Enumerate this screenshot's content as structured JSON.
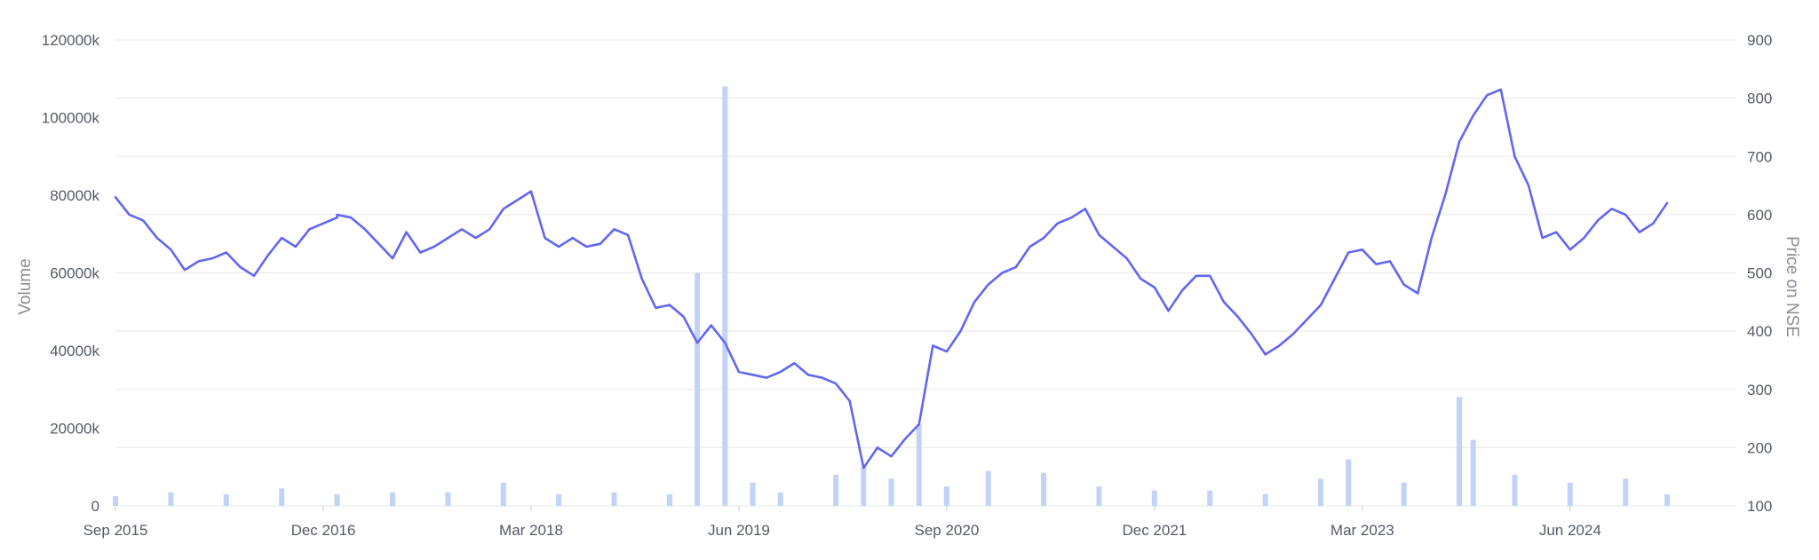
{
  "chart_data": {
    "type": "line",
    "title": "",
    "xlabel": "",
    "ylabel_left": "Volume",
    "ylabel_right": "Price on NSE",
    "x_ticks": [
      "Sep 2015",
      "Dec 2016",
      "Mar 2018",
      "Jun 2019",
      "Sep 2020",
      "Dec 2021",
      "Mar 2023",
      "Jun 2024"
    ],
    "y_left_ticks": [
      "0",
      "20000k",
      "40000k",
      "60000k",
      "80000k",
      "100000k",
      "120000k"
    ],
    "y_right_ticks": [
      "100",
      "200",
      "300",
      "400",
      "500",
      "600",
      "700",
      "800",
      "900"
    ],
    "ylim_left": [
      0,
      120000
    ],
    "ylim_right": [
      100,
      900
    ],
    "xlim": [
      "2015-09",
      "2025-06"
    ],
    "grid": true,
    "colors": {
      "price": "#6366f1",
      "volume": "#c3d3f7",
      "grid": "#e6e7ea"
    },
    "series": [
      {
        "name": "Price on NSE",
        "type": "line",
        "axis": "right",
        "points": [
          [
            "2015-09",
            630
          ],
          [
            "2015-10",
            600
          ],
          [
            "2015-11",
            590
          ],
          [
            "2015-12",
            560
          ],
          [
            "2016-01",
            540
          ],
          [
            "2016-02",
            505
          ],
          [
            "2016-03",
            520
          ],
          [
            "2016-04",
            525
          ],
          [
            "2016-05",
            535
          ],
          [
            "2016-06",
            510
          ],
          [
            "2016-07",
            495
          ],
          [
            "2016-08",
            530
          ],
          [
            "2016-09",
            560
          ],
          [
            "2016-10",
            545
          ],
          [
            "2016-11",
            575
          ],
          [
            "2016-12",
            585
          ],
          [
            "2016-13",
            595
          ],
          [
            "2017-01",
            600
          ],
          [
            "2017-02",
            595
          ],
          [
            "2017-03",
            575
          ],
          [
            "2017-04",
            550
          ],
          [
            "2017-05",
            525
          ],
          [
            "2017-06",
            570
          ],
          [
            "2017-07",
            535
          ],
          [
            "2017-08",
            545
          ],
          [
            "2017-09",
            560
          ],
          [
            "2017-10",
            575
          ],
          [
            "2017-11",
            560
          ],
          [
            "2017-12",
            575
          ],
          [
            "2018-01",
            610
          ],
          [
            "2018-02",
            625
          ],
          [
            "2018-03",
            640
          ],
          [
            "2018-04",
            560
          ],
          [
            "2018-05",
            545
          ],
          [
            "2018-06",
            560
          ],
          [
            "2018-07",
            545
          ],
          [
            "2018-08",
            550
          ],
          [
            "2018-09",
            575
          ],
          [
            "2018-10",
            565
          ],
          [
            "2018-11",
            490
          ],
          [
            "2018-12",
            440
          ],
          [
            "2019-01",
            445
          ],
          [
            "2019-02",
            425
          ],
          [
            "2019-03",
            380
          ],
          [
            "2019-04",
            410
          ],
          [
            "2019-05",
            380
          ],
          [
            "2019-06",
            330
          ],
          [
            "2019-07",
            325
          ],
          [
            "2019-08",
            320
          ],
          [
            "2019-09",
            330
          ],
          [
            "2019-10",
            345
          ],
          [
            "2019-11",
            325
          ],
          [
            "2019-12",
            320
          ],
          [
            "2020-01",
            310
          ],
          [
            "2020-02",
            280
          ],
          [
            "2020-03",
            165
          ],
          [
            "2020-04",
            200
          ],
          [
            "2020-05",
            185
          ],
          [
            "2020-06",
            215
          ],
          [
            "2020-07",
            240
          ],
          [
            "2020-08",
            375
          ],
          [
            "2020-09",
            365
          ],
          [
            "2020-10",
            400
          ],
          [
            "2020-11",
            450
          ],
          [
            "2020-12",
            480
          ],
          [
            "2021-01",
            500
          ],
          [
            "2021-02",
            510
          ],
          [
            "2021-03",
            545
          ],
          [
            "2021-04",
            560
          ],
          [
            "2021-05",
            585
          ],
          [
            "2021-06",
            595
          ],
          [
            "2021-07",
            610
          ],
          [
            "2021-08",
            565
          ],
          [
            "2021-09",
            545
          ],
          [
            "2021-10",
            525
          ],
          [
            "2021-11",
            490
          ],
          [
            "2021-12",
            475
          ],
          [
            "2022-01",
            435
          ],
          [
            "2022-02",
            470
          ],
          [
            "2022-03",
            495
          ],
          [
            "2022-04",
            495
          ],
          [
            "2022-05",
            450
          ],
          [
            "2022-06",
            425
          ],
          [
            "2022-07",
            395
          ],
          [
            "2022-08",
            360
          ],
          [
            "2022-09",
            375
          ],
          [
            "2022-10",
            395
          ],
          [
            "2022-11",
            420
          ],
          [
            "2022-12",
            445
          ],
          [
            "2023-01",
            490
          ],
          [
            "2023-02",
            535
          ],
          [
            "2023-03",
            540
          ],
          [
            "2023-04",
            515
          ],
          [
            "2023-05",
            520
          ],
          [
            "2023-06",
            480
          ],
          [
            "2023-07",
            465
          ],
          [
            "2023-08",
            560
          ],
          [
            "2023-09",
            635
          ],
          [
            "2023-10",
            725
          ],
          [
            "2023-11",
            770
          ],
          [
            "2023-12",
            805
          ],
          [
            "2024-01",
            815
          ],
          [
            "2024-02",
            700
          ],
          [
            "2024-03",
            650
          ],
          [
            "2024-04",
            560
          ],
          [
            "2024-05",
            570
          ],
          [
            "2024-06",
            540
          ],
          [
            "2024-07",
            560
          ],
          [
            "2024-08",
            590
          ],
          [
            "2024-09",
            610
          ],
          [
            "2024-10",
            600
          ],
          [
            "2024-11",
            570
          ],
          [
            "2024-12",
            585
          ],
          [
            "2025-01",
            620
          ]
        ]
      },
      {
        "name": "Volume",
        "type": "bar",
        "axis": "left",
        "points": [
          [
            "2015-09",
            2500
          ],
          [
            "2016-01",
            3500
          ],
          [
            "2016-05",
            3000
          ],
          [
            "2016-09",
            4500
          ],
          [
            "2017-01",
            3000
          ],
          [
            "2017-05",
            3500
          ],
          [
            "2017-09",
            3500
          ],
          [
            "2018-01",
            6000
          ],
          [
            "2018-05",
            3000
          ],
          [
            "2018-09",
            3500
          ],
          [
            "2019-01",
            3000
          ],
          [
            "2019-03",
            60000
          ],
          [
            "2019-05",
            108000
          ],
          [
            "2019-07",
            6000
          ],
          [
            "2019-09",
            3500
          ],
          [
            "2020-01",
            8000
          ],
          [
            "2020-03",
            10000
          ],
          [
            "2020-05",
            7000
          ],
          [
            "2020-07",
            21000
          ],
          [
            "2020-09",
            5000
          ],
          [
            "2020-12",
            9000
          ],
          [
            "2021-04",
            8500
          ],
          [
            "2021-08",
            5000
          ],
          [
            "2021-12",
            4000
          ],
          [
            "2022-04",
            4000
          ],
          [
            "2022-08",
            3000
          ],
          [
            "2022-12",
            7000
          ],
          [
            "2023-02",
            12000
          ],
          [
            "2023-06",
            6000
          ],
          [
            "2023-10",
            28000
          ],
          [
            "2023-11",
            17000
          ],
          [
            "2024-02",
            8000
          ],
          [
            "2024-06",
            6000
          ],
          [
            "2024-10",
            7000
          ],
          [
            "2025-01",
            3000
          ]
        ]
      }
    ]
  }
}
